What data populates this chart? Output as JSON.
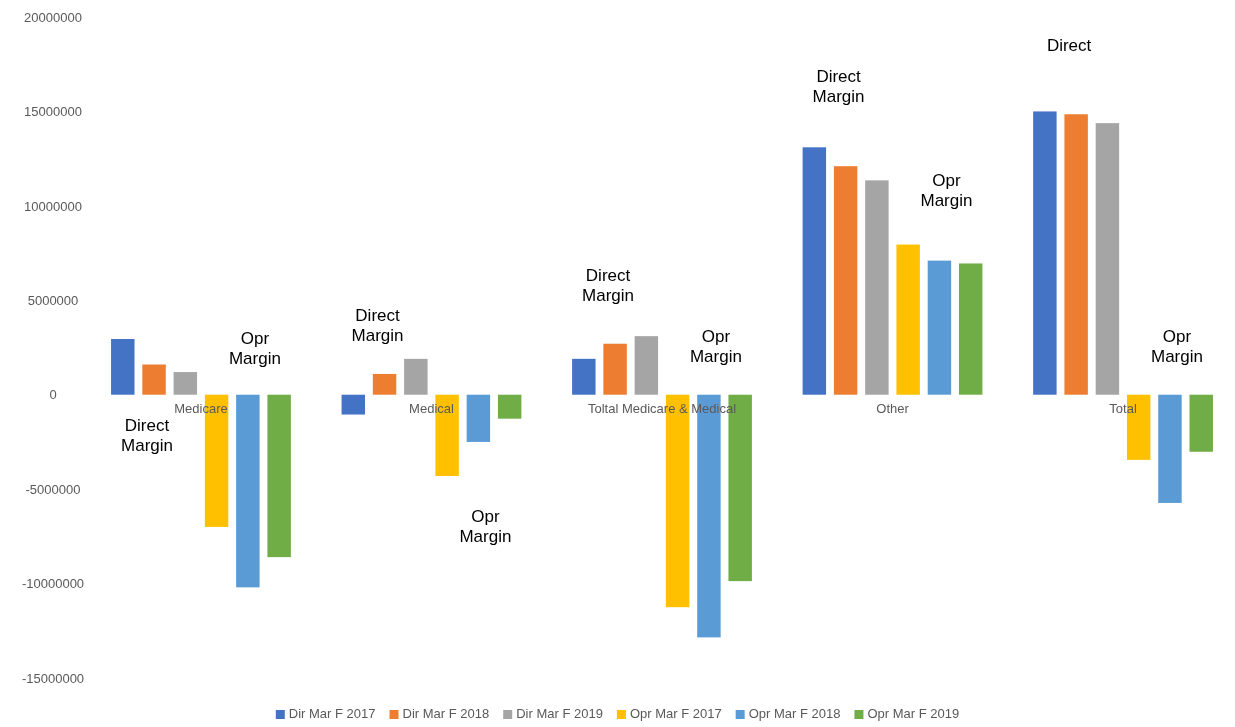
{
  "chart_data": {
    "type": "bar",
    "categories": [
      "Medicare",
      "Medical",
      "Toltal Medicare & Medical",
      "Other",
      "Total"
    ],
    "series": [
      {
        "name": "Dir Mar F 2017",
        "color": "#4472c4",
        "values": [
          2950000,
          -1050000,
          1900000,
          13100000,
          15000000
        ]
      },
      {
        "name": "Dir Mar F 2018",
        "color": "#ed7d31",
        "values": [
          1600000,
          1100000,
          2700000,
          12100000,
          14850000
        ]
      },
      {
        "name": "Dir Mar F 2019",
        "color": "#a5a5a5",
        "values": [
          1200000,
          1900000,
          3100000,
          11350000,
          14380000
        ]
      },
      {
        "name": "Opr Mar F 2017",
        "color": "#ffc000",
        "values": [
          -7000000,
          -4300000,
          -11250000,
          7950000,
          -3450000
        ]
      },
      {
        "name": "Opr Mar F 2018",
        "color": "#5b9bd5",
        "values": [
          -10200000,
          -2500000,
          -12850000,
          7100000,
          -5730000
        ]
      },
      {
        "name": "Opr Mar F 2019",
        "color": "#70ad47",
        "values": [
          -8600000,
          -1270000,
          -9870000,
          6950000,
          -3020000
        ]
      }
    ],
    "ylim": [
      -15000000,
      20000000
    ],
    "yticks": [
      -15000000,
      -10000000,
      -5000000,
      0,
      5000000,
      10000000,
      15000000,
      20000000
    ],
    "grid": false,
    "legend": "bottom",
    "annotations": [
      "Direct Margin",
      "Opr Margin",
      "Direct Margin",
      "Opr Margin",
      "Direct Margin",
      "Opr Margin",
      "Direct Margin",
      "Opr Margin",
      "Direct",
      "Opr Margin"
    ]
  }
}
